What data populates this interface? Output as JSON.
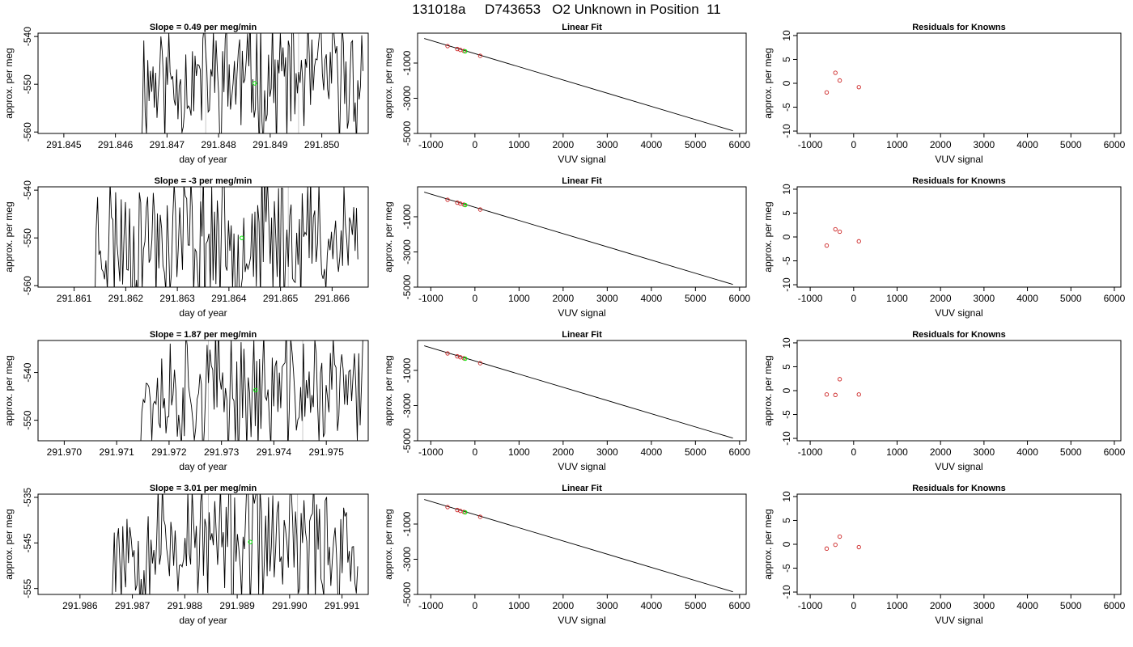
{
  "main_title": "131018a     D743653   O2 Unknown in Position  11",
  "colors": {
    "line": "#000000",
    "known_point": "#cc2222",
    "unknown_point": "#00ee00",
    "guide_line": "#c8c8c8",
    "residual_point": "#cc2222"
  },
  "chart_data": [
    {
      "type": "line",
      "panel": "slope",
      "row": 1,
      "title": "Slope =  0.49  per meg/min",
      "xlabel": "day of year",
      "ylabel": "approx. per meg",
      "xlim": [
        291.8445,
        291.8509
      ],
      "ylim": [
        -560.3,
        -539.3
      ],
      "xticks": [
        "291.845",
        "291.846",
        "291.847",
        "291.848",
        "291.849",
        "291.850"
      ],
      "xtick_values": [
        291.845,
        291.846,
        291.847,
        291.848,
        291.849,
        291.85
      ],
      "yticks": [
        "-540",
        "-550",
        "-560"
      ],
      "ytick_values": [
        -540,
        -550,
        -560
      ],
      "trace": {
        "x_start": 291.8465,
        "x_end": 291.8508,
        "center": -549,
        "amplitude": 11,
        "seed": 11,
        "n": 170
      },
      "guide_lines_x": [
        291.84775,
        291.84955
      ],
      "green_point": {
        "x": 291.8487,
        "y": -549.8
      }
    },
    {
      "type": "scatter",
      "panel": "linear_fit",
      "row": 1,
      "title": "Linear Fit",
      "xlabel": "VUV signal",
      "ylabel": "approx. per meg",
      "xlim": [
        -1300,
        6150
      ],
      "ylim": [
        -5000,
        700
      ],
      "xticks": [
        "-1000",
        "0",
        "1000",
        "2000",
        "3000",
        "4000",
        "5000",
        "6000"
      ],
      "xtick_values": [
        -1000,
        0,
        1000,
        2000,
        3000,
        4000,
        5000,
        6000
      ],
      "yticks": [
        "-1000",
        "-3000",
        "-5000"
      ],
      "ytick_values": [
        -1000,
        -3000,
        -5000
      ],
      "fit_line": {
        "x": [
          -1150,
          5850
        ],
        "y": [
          400,
          -4850
        ]
      },
      "known_points": {
        "x": [
          -620,
          -400,
          -330,
          -250,
          120
        ],
        "y": [
          -35,
          -200,
          -253,
          -313,
          -590
        ]
      },
      "unknown_point": {
        "x": -220,
        "y": -335
      }
    },
    {
      "type": "scatter",
      "panel": "residuals",
      "row": 1,
      "title": "Residuals for Knowns",
      "xlabel": "VUV signal",
      "ylabel": "approx. per meg",
      "xlim": [
        -1300,
        6150
      ],
      "ylim": [
        -10.5,
        10.5
      ],
      "xticks": [
        "-1000",
        "0",
        "1000",
        "2000",
        "3000",
        "4000",
        "5000",
        "6000"
      ],
      "xtick_values": [
        -1000,
        0,
        1000,
        2000,
        3000,
        4000,
        5000,
        6000
      ],
      "yticks": [
        "10",
        "5",
        "0",
        "-5",
        "-10"
      ],
      "ytick_values": [
        10,
        5,
        0,
        -5,
        -10
      ],
      "points": {
        "x": [
          -620,
          -420,
          -320,
          120
        ],
        "y": [
          -1.9,
          2.2,
          0.6,
          -0.8
        ]
      }
    },
    {
      "type": "line",
      "panel": "slope",
      "row": 2,
      "title": "Slope =  -3  per meg/min",
      "xlabel": "day of year",
      "ylabel": "approx. per meg",
      "xlim": [
        291.8603,
        291.8667
      ],
      "ylim": [
        -560.3,
        -539.3
      ],
      "xticks": [
        "291.861",
        "291.862",
        "291.863",
        "291.864",
        "291.865",
        "291.866"
      ],
      "xtick_values": [
        291.861,
        291.862,
        291.863,
        291.864,
        291.865,
        291.866
      ],
      "yticks": [
        "-540",
        "-550",
        "-560"
      ],
      "ytick_values": [
        -540,
        -550,
        -560
      ],
      "trace": {
        "x_start": 291.8614,
        "x_end": 291.8665,
        "center": -550,
        "amplitude": 12,
        "seed": 23,
        "n": 190
      },
      "guide_lines_x": [
        291.86345,
        291.86515
      ],
      "green_point": {
        "x": 291.86425,
        "y": -550.0
      }
    },
    {
      "type": "scatter",
      "panel": "linear_fit",
      "row": 2,
      "title": "Linear Fit",
      "xlabel": "VUV signal",
      "ylabel": "approx. per meg",
      "xlim": [
        -1300,
        6150
      ],
      "ylim": [
        -5000,
        700
      ],
      "xticks": [
        "-1000",
        "0",
        "1000",
        "2000",
        "3000",
        "4000",
        "5000",
        "6000"
      ],
      "xtick_values": [
        -1000,
        0,
        1000,
        2000,
        3000,
        4000,
        5000,
        6000
      ],
      "yticks": [
        "-1000",
        "-3000",
        "-5000"
      ],
      "ytick_values": [
        -1000,
        -3000,
        -5000
      ],
      "fit_line": {
        "x": [
          -1150,
          5850
        ],
        "y": [
          400,
          -4850
        ]
      },
      "known_points": {
        "x": [
          -620,
          -400,
          -330,
          -250,
          120
        ],
        "y": [
          -35,
          -200,
          -253,
          -313,
          -590
        ]
      },
      "unknown_point": {
        "x": -220,
        "y": -335
      }
    },
    {
      "type": "scatter",
      "panel": "residuals",
      "row": 2,
      "title": "Residuals for Knowns",
      "xlabel": "VUV signal",
      "ylabel": "approx. per meg",
      "xlim": [
        -1300,
        6150
      ],
      "ylim": [
        -10.5,
        10.5
      ],
      "xticks": [
        "-1000",
        "0",
        "1000",
        "2000",
        "3000",
        "4000",
        "5000",
        "6000"
      ],
      "xtick_values": [
        -1000,
        0,
        1000,
        2000,
        3000,
        4000,
        5000,
        6000
      ],
      "yticks": [
        "10",
        "5",
        "0",
        "-5",
        "-10"
      ],
      "ytick_values": [
        10,
        5,
        0,
        -5,
        -10
      ],
      "points": {
        "x": [
          -620,
          -420,
          -320,
          120
        ],
        "y": [
          -1.8,
          1.6,
          1.1,
          -0.9
        ]
      }
    },
    {
      "type": "line",
      "panel": "slope",
      "row": 3,
      "title": "Slope =  1.87  per meg/min",
      "xlabel": "day of year",
      "ylabel": "approx. per meg",
      "xlim": [
        291.9695,
        291.9758
      ],
      "ylim": [
        -554.3,
        -533.3
      ],
      "xticks": [
        "291.970",
        "291.971",
        "291.972",
        "291.973",
        "291.974",
        "291.975"
      ],
      "xtick_values": [
        291.97,
        291.971,
        291.972,
        291.973,
        291.974,
        291.975
      ],
      "yticks": [
        "-540",
        "-550"
      ],
      "ytick_values": [
        -540,
        -550
      ],
      "trace": {
        "x_start": 291.9714,
        "x_end": 291.9757,
        "center": -544,
        "amplitude": 11,
        "seed": 37,
        "n": 160
      },
      "guide_lines_x": [
        291.97275,
        291.97455
      ],
      "green_point": {
        "x": 291.97365,
        "y": -543.7
      }
    },
    {
      "type": "scatter",
      "panel": "linear_fit",
      "row": 3,
      "title": "Linear Fit",
      "xlabel": "VUV signal",
      "ylabel": "approx. per meg",
      "xlim": [
        -1300,
        6150
      ],
      "ylim": [
        -5000,
        700
      ],
      "xticks": [
        "-1000",
        "0",
        "1000",
        "2000",
        "3000",
        "4000",
        "5000",
        "6000"
      ],
      "xtick_values": [
        -1000,
        0,
        1000,
        2000,
        3000,
        4000,
        5000,
        6000
      ],
      "yticks": [
        "-1000",
        "-3000",
        "-5000"
      ],
      "ytick_values": [
        -1000,
        -3000,
        -5000
      ],
      "fit_line": {
        "x": [
          -1150,
          5850
        ],
        "y": [
          400,
          -4850
        ]
      },
      "known_points": {
        "x": [
          -620,
          -400,
          -330,
          -250,
          120
        ],
        "y": [
          -35,
          -200,
          -253,
          -313,
          -590
        ]
      },
      "unknown_point": {
        "x": -220,
        "y": -335
      }
    },
    {
      "type": "scatter",
      "panel": "residuals",
      "row": 3,
      "title": "Residuals for Knowns",
      "xlabel": "VUV signal",
      "ylabel": "approx. per meg",
      "xlim": [
        -1300,
        6150
      ],
      "ylim": [
        -10.5,
        10.5
      ],
      "xticks": [
        "-1000",
        "0",
        "1000",
        "2000",
        "3000",
        "4000",
        "5000",
        "6000"
      ],
      "xtick_values": [
        -1000,
        0,
        1000,
        2000,
        3000,
        4000,
        5000,
        6000
      ],
      "yticks": [
        "10",
        "5",
        "0",
        "-5",
        "-10"
      ],
      "ytick_values": [
        10,
        5,
        0,
        -5,
        -10
      ],
      "points": {
        "x": [
          -620,
          -420,
          -320,
          120
        ],
        "y": [
          -0.8,
          -0.9,
          2.4,
          -0.8
        ]
      }
    },
    {
      "type": "line",
      "panel": "slope",
      "row": 4,
      "title": "Slope =  3.01  per meg/min",
      "xlabel": "day of year",
      "ylabel": "approx. per meg",
      "xlim": [
        291.9852,
        291.9915
      ],
      "ylim": [
        -556.3,
        -534.3
      ],
      "xticks": [
        "291.986",
        "291.987",
        "291.988",
        "291.989",
        "291.990",
        "291.991"
      ],
      "xtick_values": [
        291.986,
        291.987,
        291.988,
        291.989,
        291.99,
        291.991
      ],
      "yticks": [
        "-535",
        "-545",
        "-555"
      ],
      "ytick_values": [
        -535,
        -545,
        -555
      ],
      "trace": {
        "x_start": 291.9866,
        "x_end": 291.9913,
        "center": -545,
        "amplitude": 12,
        "seed": 53,
        "n": 175
      },
      "guide_lines_x": [
        291.98845,
        291.99015
      ],
      "green_point": {
        "x": 291.98925,
        "y": -544.8
      }
    },
    {
      "type": "scatter",
      "panel": "linear_fit",
      "row": 4,
      "title": "Linear Fit",
      "xlabel": "VUV signal",
      "ylabel": "approx. per meg",
      "xlim": [
        -1300,
        6150
      ],
      "ylim": [
        -5000,
        700
      ],
      "xticks": [
        "-1000",
        "0",
        "1000",
        "2000",
        "3000",
        "4000",
        "5000",
        "6000"
      ],
      "xtick_values": [
        -1000,
        0,
        1000,
        2000,
        3000,
        4000,
        5000,
        6000
      ],
      "yticks": [
        "-1000",
        "-3000",
        "-5000"
      ],
      "ytick_values": [
        -1000,
        -3000,
        -5000
      ],
      "fit_line": {
        "x": [
          -1150,
          5850
        ],
        "y": [
          400,
          -4850
        ]
      },
      "known_points": {
        "x": [
          -620,
          -400,
          -330,
          -250,
          120
        ],
        "y": [
          -35,
          -200,
          -253,
          -313,
          -590
        ]
      },
      "unknown_point": {
        "x": -220,
        "y": -335
      }
    },
    {
      "type": "scatter",
      "panel": "residuals",
      "row": 4,
      "title": "Residuals for Knowns",
      "xlabel": "VUV signal",
      "ylabel": "approx. per meg",
      "xlim": [
        -1300,
        6150
      ],
      "ylim": [
        -10.5,
        10.5
      ],
      "xticks": [
        "-1000",
        "0",
        "1000",
        "2000",
        "3000",
        "4000",
        "5000",
        "6000"
      ],
      "xtick_values": [
        -1000,
        0,
        1000,
        2000,
        3000,
        4000,
        5000,
        6000
      ],
      "yticks": [
        "10",
        "5",
        "0",
        "-5",
        "-10"
      ],
      "ytick_values": [
        10,
        5,
        0,
        -5,
        -10
      ],
      "points": {
        "x": [
          -620,
          -420,
          -320,
          120
        ],
        "y": [
          -0.9,
          -0.1,
          1.6,
          -0.6
        ]
      }
    }
  ]
}
